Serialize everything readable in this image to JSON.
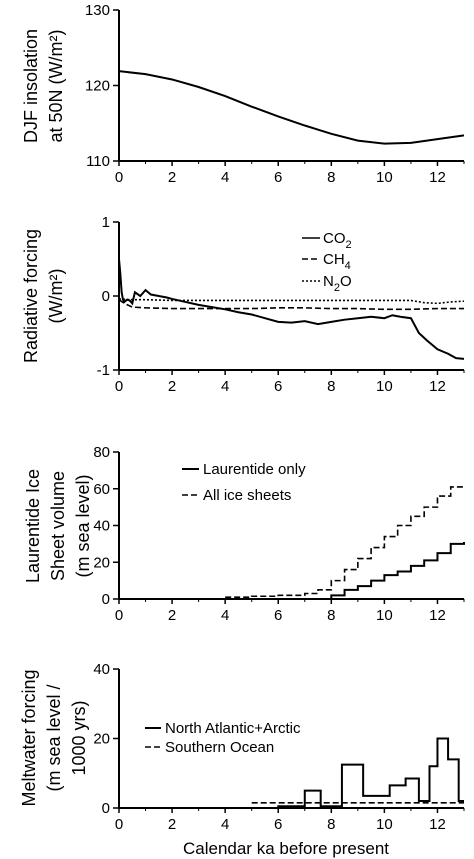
{
  "figure": {
    "xlabel": "Calendar ka before present"
  },
  "chart_data": [
    {
      "type": "line",
      "ylabel_lines": [
        "DJF insolation",
        "at 50N (W/m²)"
      ],
      "xlim": [
        0,
        13
      ],
      "ylim": [
        110,
        130
      ],
      "xticks": [
        0,
        2,
        4,
        6,
        8,
        10,
        12
      ],
      "yticks": [
        110,
        120,
        130
      ],
      "series": [
        {
          "style": "solid",
          "x": [
            0,
            1,
            2,
            3,
            4,
            5,
            6,
            7,
            8,
            9,
            10,
            11,
            12,
            13
          ],
          "y": [
            121.9,
            121.5,
            120.8,
            119.8,
            118.6,
            117.2,
            115.9,
            114.7,
            113.6,
            112.7,
            112.3,
            112.4,
            112.9,
            113.4
          ]
        }
      ]
    },
    {
      "type": "line",
      "ylabel_lines": [
        "Radiative forcing",
        "(W/m²)"
      ],
      "xlim": [
        0,
        13
      ],
      "ylim": [
        -1,
        1
      ],
      "xticks": [
        0,
        2,
        4,
        6,
        8,
        10,
        12
      ],
      "yticks": [
        -1,
        0,
        1
      ],
      "legend": {
        "position": "top-right"
      },
      "series": [
        {
          "name": "CO2",
          "style": "solid",
          "x": [
            0,
            0.05,
            0.1,
            0.15,
            0.2,
            0.3,
            0.4,
            0.5,
            0.6,
            0.8,
            1.0,
            1.2,
            1.5,
            1.8,
            2.0,
            2.5,
            3.0,
            3.5,
            4.0,
            4.5,
            5.0,
            5.5,
            6.0,
            6.5,
            7.0,
            7.5,
            8.0,
            8.5,
            9.0,
            9.5,
            10.0,
            10.3,
            10.6,
            11.0,
            11.3,
            11.6,
            12.0,
            12.4,
            12.7,
            13.0
          ],
          "y": [
            0.5,
            0.3,
            0.05,
            -0.05,
            -0.08,
            -0.05,
            -0.06,
            -0.1,
            0.05,
            0.0,
            0.08,
            0.02,
            0.0,
            -0.02,
            -0.04,
            -0.08,
            -0.12,
            -0.15,
            -0.18,
            -0.22,
            -0.25,
            -0.3,
            -0.35,
            -0.36,
            -0.34,
            -0.38,
            -0.35,
            -0.32,
            -0.3,
            -0.28,
            -0.3,
            -0.26,
            -0.28,
            -0.3,
            -0.5,
            -0.6,
            -0.72,
            -0.78,
            -0.84,
            -0.85
          ]
        },
        {
          "name": "CH4",
          "style": "dashed",
          "x": [
            0,
            0.2,
            0.5,
            1,
            2,
            3,
            4,
            5,
            6,
            7,
            8,
            9,
            10,
            11,
            12,
            13
          ],
          "y": [
            -0.05,
            -0.1,
            -0.15,
            -0.16,
            -0.17,
            -0.17,
            -0.17,
            -0.17,
            -0.16,
            -0.16,
            -0.17,
            -0.17,
            -0.18,
            -0.18,
            -0.17,
            -0.17
          ]
        },
        {
          "name": "N2O",
          "style": "dotted",
          "x": [
            0,
            0.5,
            1,
            2,
            3,
            4,
            5,
            6,
            7,
            8,
            9,
            10,
            11,
            11.5,
            12,
            12.5,
            13
          ],
          "y": [
            -0.04,
            -0.05,
            -0.05,
            -0.06,
            -0.06,
            -0.06,
            -0.06,
            -0.06,
            -0.06,
            -0.06,
            -0.06,
            -0.06,
            -0.06,
            -0.09,
            -0.1,
            -0.08,
            -0.07
          ]
        }
      ],
      "legend_entries": [
        {
          "base": "CO",
          "sub": "2"
        },
        {
          "base": "CH",
          "sub": "4"
        },
        {
          "base": "N",
          "sub": "2",
          "tail": "O"
        }
      ]
    },
    {
      "type": "line",
      "ylabel_lines": [
        "Laurentide Ice",
        "Sheet volume",
        "(m sea level)"
      ],
      "xlim": [
        0,
        13
      ],
      "ylim": [
        0,
        80
      ],
      "xticks": [
        0,
        2,
        4,
        6,
        8,
        10,
        12
      ],
      "yticks": [
        0,
        20,
        40,
        60,
        80
      ],
      "legend": {
        "position": "top-right"
      },
      "series": [
        {
          "name": "Laurentide only",
          "style": "solid-step",
          "x": [
            0,
            8.0,
            8.5,
            9.0,
            9.5,
            10.0,
            10.5,
            11.0,
            11.5,
            12.0,
            12.5,
            13.0
          ],
          "y": [
            0,
            2,
            5,
            7,
            10,
            13,
            15,
            18,
            21,
            25,
            30,
            31
          ]
        },
        {
          "name": "All ice sheets",
          "style": "dashed-step",
          "x": [
            0,
            4.0,
            5.0,
            6.0,
            7.0,
            7.5,
            8.0,
            8.5,
            9.0,
            9.5,
            10.0,
            10.5,
            11.0,
            11.5,
            12.0,
            12.5,
            13.0
          ],
          "y": [
            0,
            1,
            1.5,
            2,
            3,
            5,
            10,
            16,
            22,
            28,
            34,
            40,
            45,
            50,
            56,
            61,
            62
          ]
        }
      ]
    },
    {
      "type": "line",
      "ylabel_lines": [
        "Meltwater forcing",
        "(m sea level /",
        "1000 yrs)"
      ],
      "xlim": [
        0,
        13
      ],
      "ylim": [
        0,
        40
      ],
      "xticks": [
        0,
        2,
        4,
        6,
        8,
        10,
        12
      ],
      "yticks": [
        0,
        20,
        40
      ],
      "legend": {
        "position": "center-left"
      },
      "series": [
        {
          "name": "North Atlantic+Arctic",
          "style": "solid-step",
          "x": [
            0,
            6.0,
            7.0,
            7.6,
            8.4,
            9.2,
            10.2,
            10.8,
            11.3,
            11.7,
            12.0,
            12.4,
            12.8,
            13.0
          ],
          "y": [
            0,
            0.5,
            5,
            0.5,
            12.5,
            3.5,
            6.5,
            8.5,
            2,
            12,
            20,
            14,
            2,
            2
          ]
        },
        {
          "name": "Southern Ocean",
          "style": "dashed",
          "x": [
            5.0,
            13.0
          ],
          "y": [
            1.5,
            1.5
          ]
        }
      ]
    }
  ]
}
